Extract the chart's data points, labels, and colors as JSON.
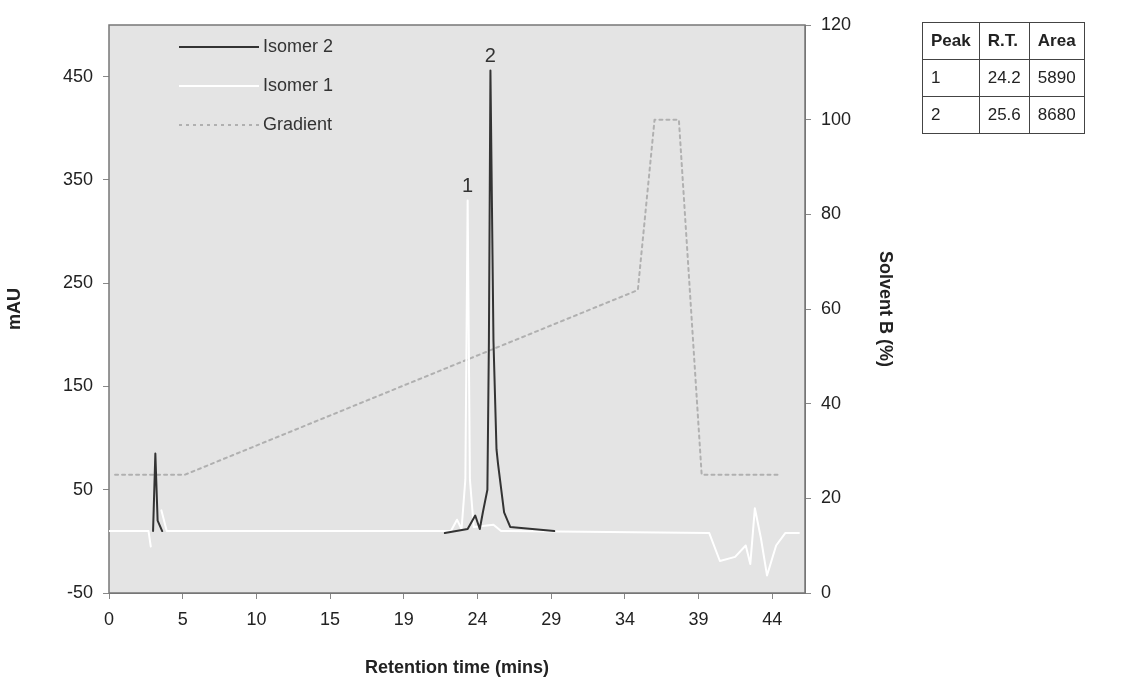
{
  "chart_data": {
    "type": "line",
    "xlabel": "Retention time (mins)",
    "ylabel": "mAU",
    "y2label": "Solvent B (%)",
    "xlim": [
      0,
      45.8
    ],
    "xticks": [
      0,
      {
        "value": 4.85,
        "label": "5"
      },
      {
        "value": 9.7,
        "label": "10"
      },
      {
        "value": 14.55,
        "label": "15"
      },
      {
        "value": 19.4,
        "label": "19"
      },
      {
        "value": 24.25,
        "label": "24"
      },
      {
        "value": 29.1,
        "label": "29"
      },
      {
        "value": 33.95,
        "label": "34"
      },
      {
        "value": 38.8,
        "label": "39"
      },
      {
        "value": 43.65,
        "label": "44"
      }
    ],
    "ylim": [
      -50,
      500
    ],
    "yticks": [
      -50,
      50,
      150,
      250,
      350,
      450
    ],
    "y2lim": [
      0,
      120
    ],
    "y2ticks": [
      0,
      20,
      40,
      60,
      80,
      100,
      120
    ],
    "legend": "top left",
    "marker": "none",
    "series": [
      {
        "name": "Isomer 2",
        "color": "#333333",
        "line_style": "solid",
        "x": [
          2.9,
          3.05,
          3.2,
          3.5,
          10,
          22.1,
          23.6,
          24.1,
          24.4,
          24.6,
          24.9,
          25.0,
          25.1,
          25.3,
          25.5,
          25.6,
          26.0,
          26.4,
          29.3
        ],
        "values": [
          10,
          85,
          20,
          10,
          null,
          8,
          12,
          25,
          12,
          28,
          50,
          194,
          456,
          194,
          89,
          75,
          28,
          14,
          10
        ]
      },
      {
        "name": "Isomer 1",
        "color": "#ffffff",
        "line_style": "solid",
        "x": [
          0,
          2.6,
          2.75,
          2.8,
          3.25,
          3.45,
          3.8,
          22.5,
          22.9,
          23.2,
          23.45,
          23.6,
          23.75,
          24.0,
          25.3,
          25.8,
          39.5,
          40.2,
          41.2,
          41.9,
          42.2,
          42.5,
          42.9,
          43.3,
          43.9,
          44.5,
          45.4
        ],
        "values": [
          10,
          10,
          -5,
          null,
          null,
          30,
          10,
          10,
          21,
          12,
          60,
          330,
          60,
          14,
          16,
          10,
          8,
          -19,
          -15,
          -4,
          -22,
          32,
          3,
          -33,
          -4,
          8,
          8
        ]
      },
      {
        "name": "Gradient",
        "color": "#b0b0b0",
        "line_style": "dotted",
        "axis": "y2",
        "x": [
          0.4,
          5.0,
          34.8,
          35.9,
          37.5,
          39.0,
          44.0
        ],
        "values": [
          25,
          25,
          64,
          100,
          100,
          25,
          25
        ]
      }
    ],
    "annotations": [
      {
        "text": "1",
        "x": 23.6,
        "y": 330
      },
      {
        "text": "2",
        "x": 25.1,
        "y": 456
      },
      "Peak",
      "R.T.",
      "Area",
      "1",
      "24.2",
      "5890",
      "2",
      "25.6",
      "8680"
    ]
  }
}
